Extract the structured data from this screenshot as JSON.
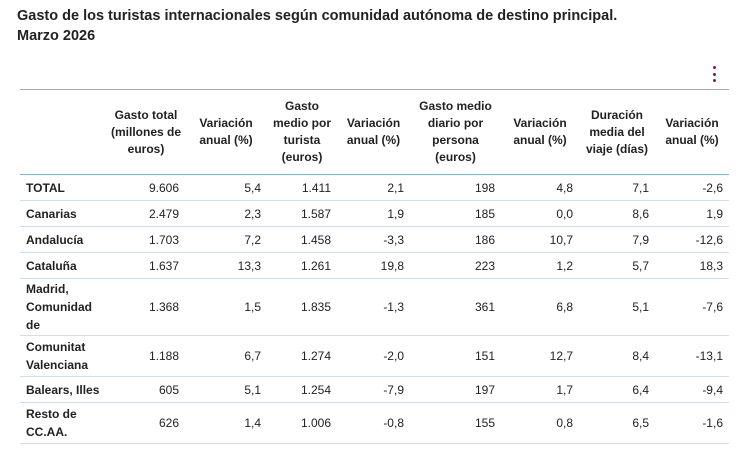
{
  "title_line1": "Gasto de los turistas internacionales según comunidad autónoma de destino principal.",
  "title_line2": "Marzo 2026",
  "menu_icon": "vertical-dots-icon",
  "accent_color": "#8b1a3a",
  "headers": [
    "",
    "Gasto total (millones de euros)",
    "Variación anual (%)",
    "Gasto medio por turista (euros)",
    "Variación anual (%)",
    "Gasto medio diario por persona (euros)",
    "Variación anual (%)",
    "Duración media del viaje (días)",
    "Variación anual (%)"
  ],
  "rows": [
    {
      "region": "TOTAL",
      "values": [
        "9.606",
        "5,4",
        "1.411",
        "2,1",
        "198",
        "4,8",
        "7,1",
        "-2,6"
      ]
    },
    {
      "region": "Canarias",
      "values": [
        "2.479",
        "2,3",
        "1.587",
        "1,9",
        "185",
        "0,0",
        "8,6",
        "1,9"
      ]
    },
    {
      "region": "Andalucía",
      "values": [
        "1.703",
        "7,2",
        "1.458",
        "-3,3",
        "186",
        "10,7",
        "7,9",
        "-12,6"
      ]
    },
    {
      "region": "Cataluña",
      "values": [
        "1.637",
        "13,3",
        "1.261",
        "19,8",
        "223",
        "1,2",
        "5,7",
        "18,3"
      ]
    },
    {
      "region": "Madrid, Comunidad de",
      "values": [
        "1.368",
        "1,5",
        "1.835",
        "-1,3",
        "361",
        "6,8",
        "5,1",
        "-7,6"
      ]
    },
    {
      "region": "Comunitat Valenciana",
      "values": [
        "1.188",
        "6,7",
        "1.274",
        "-2,0",
        "151",
        "12,7",
        "8,4",
        "-13,1"
      ]
    },
    {
      "region": "Balears, Illes",
      "values": [
        "605",
        "5,1",
        "1.254",
        "-7,9",
        "197",
        "1,7",
        "6,4",
        "-9,4"
      ]
    },
    {
      "region": "Resto de CC.AA.",
      "values": [
        "626",
        "1,4",
        "1.006",
        "-0,8",
        "155",
        "0,8",
        "6,5",
        "-1,6"
      ]
    }
  ]
}
